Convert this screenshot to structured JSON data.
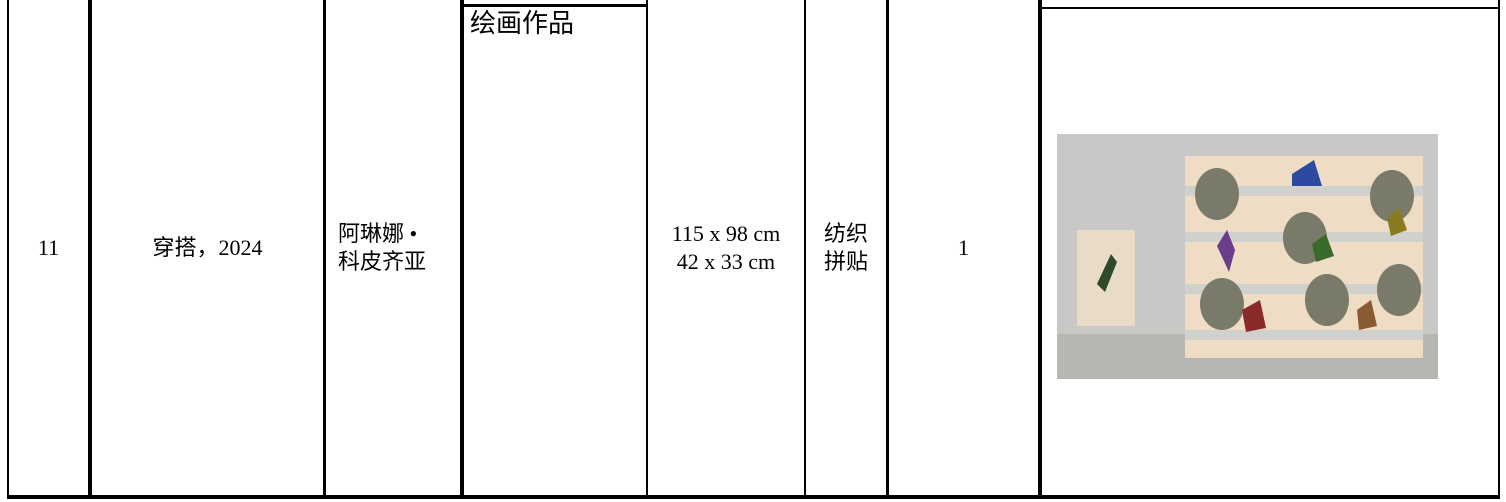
{
  "table": {
    "rows": [
      [
        "11",
        "穿搭，2024",
        [
          "阿琳娜 •",
          "科皮齐亚"
        ],
        "绘画作品",
        [
          "115 x 98 cm",
          "42 x 33 cm"
        ],
        [
          "纺织",
          "拼贴"
        ],
        "1"
      ]
    ]
  }
}
